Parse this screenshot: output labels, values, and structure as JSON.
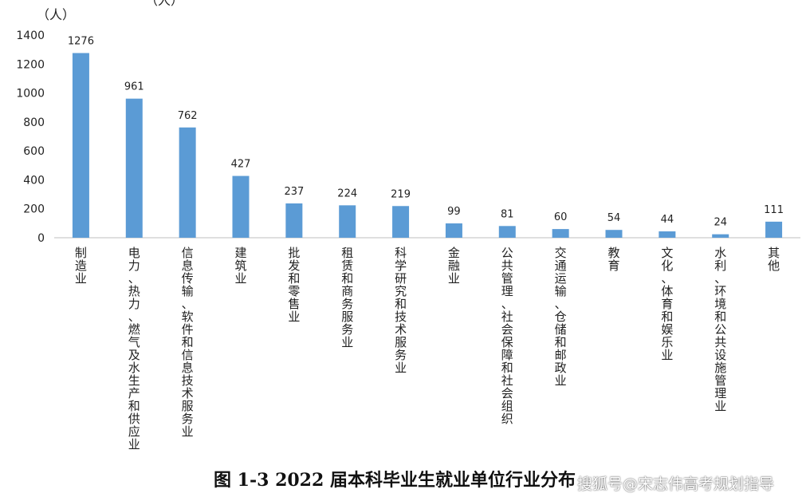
{
  "chart_data": {
    "type": "bar",
    "unit_label_left": "（人）",
    "unit_label_top": "（人）",
    "categories": [
      "制造业",
      "电力、热力、燃气及水生产和供应业",
      "信息传输、软件和信息技术服务业",
      "建筑业",
      "批发和零售业",
      "租赁和商务服务业",
      "科学研究和技术服务业",
      "金融业",
      "公共管理、社会保障和社会组织",
      "交通运输、仓储和邮政业",
      "教育",
      "文化、体育和娱乐业",
      "水利、环境和公共设施管理业",
      "其他"
    ],
    "values": [
      1276,
      961,
      762,
      427,
      237,
      224,
      219,
      99,
      81,
      60,
      54,
      44,
      24,
      111
    ],
    "ylim": [
      0,
      1400
    ],
    "yticks": [
      0,
      200,
      400,
      600,
      800,
      1000,
      1200,
      1400
    ],
    "bar_color": "#5B9BD5",
    "grid": false
  },
  "caption": "图 1-3 2022 届本科毕业生就业单位行业分布",
  "watermark": "搜狐号@宋志伟高考规划指导"
}
